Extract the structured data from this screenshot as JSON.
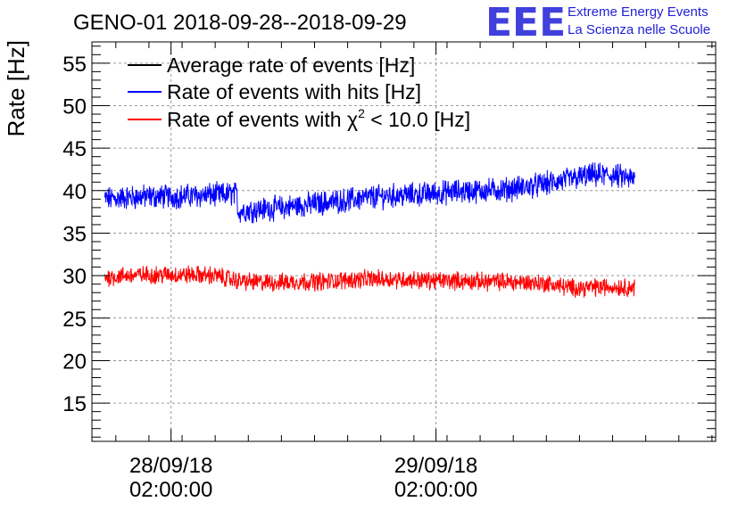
{
  "logo": {
    "letters": "EEE",
    "line1": "Extreme Energy Events",
    "line2": "La Scienza nelle Scuole",
    "color": "#1f1fd6"
  },
  "chart_data": {
    "type": "line",
    "title": "GENO-01 2018-09-28--2018-09-29",
    "ylabel": "Rate [Hz]",
    "xlabel": "",
    "ylim": [
      10.5,
      57.5
    ],
    "yticks": [
      "15",
      "20",
      "25",
      "30",
      "35",
      "40",
      "45",
      "50",
      "55"
    ],
    "xlim": [
      "2018-09-27 18:50:00",
      "2018-09-30 03:20:00"
    ],
    "xticks": [
      {
        "date": "28/09/18",
        "time": "02:00:00",
        "x": "2018-09-28 02:00:00"
      },
      {
        "date": "29/09/18",
        "time": "02:00:00",
        "x": "2018-09-29 02:00:00"
      }
    ],
    "grid": true,
    "legend_position": "top-left",
    "legend": [
      {
        "label": "Average rate of events [Hz]",
        "color": "#000000"
      },
      {
        "label": "Rate of events with hits [Hz]",
        "color": "#0000ff"
      },
      {
        "label_prefix": "Rate of events with ",
        "label_symbol": "χ",
        "label_sup": "2",
        "label_suffix": " < 10.0 [Hz]",
        "color": "#ff0000"
      }
    ],
    "series": [
      {
        "name": "Rate of events with hits [Hz]",
        "color": "#0000ff",
        "x": [
          "2018-09-27 20:00:00",
          "2018-09-27 22:00:00",
          "2018-09-28 00:00:00",
          "2018-09-28 02:00:00",
          "2018-09-28 04:00:00",
          "2018-09-28 06:00:00",
          "2018-09-28 07:00:00",
          "2018-09-28 08:00:00",
          "2018-09-28 10:00:00",
          "2018-09-28 12:00:00",
          "2018-09-28 14:00:00",
          "2018-09-28 16:00:00",
          "2018-09-28 18:00:00",
          "2018-09-28 20:00:00",
          "2018-09-28 22:00:00",
          "2018-09-29 00:00:00",
          "2018-09-29 02:00:00",
          "2018-09-29 04:00:00",
          "2018-09-29 06:00:00",
          "2018-09-29 08:00:00",
          "2018-09-29 10:00:00",
          "2018-09-29 12:00:00",
          "2018-09-29 14:00:00",
          "2018-09-29 16:00:00",
          "2018-09-29 18:00:00",
          "2018-09-29 20:00:00"
        ],
        "values": [
          39.0,
          39.2,
          39.3,
          39.3,
          39.4,
          39.5,
          39.6,
          37.6,
          37.8,
          38.0,
          38.3,
          38.6,
          38.9,
          39.2,
          39.4,
          39.5,
          39.7,
          39.9,
          40.0,
          40.1,
          40.4,
          40.8,
          41.3,
          41.8,
          41.8,
          41.3
        ],
        "spread": 1.2
      },
      {
        "name": "Rate of events with χ² < 10.0 [Hz]",
        "color": "#ff0000",
        "x": [
          "2018-09-27 20:00:00",
          "2018-09-27 22:00:00",
          "2018-09-28 00:00:00",
          "2018-09-28 02:00:00",
          "2018-09-28 04:00:00",
          "2018-09-28 06:00:00",
          "2018-09-28 08:00:00",
          "2018-09-28 10:00:00",
          "2018-09-28 12:00:00",
          "2018-09-28 14:00:00",
          "2018-09-28 16:00:00",
          "2018-09-28 18:00:00",
          "2018-09-28 20:00:00",
          "2018-09-28 22:00:00",
          "2018-09-29 00:00:00",
          "2018-09-29 02:00:00",
          "2018-09-29 04:00:00",
          "2018-09-29 06:00:00",
          "2018-09-29 08:00:00",
          "2018-09-29 10:00:00",
          "2018-09-29 12:00:00",
          "2018-09-29 14:00:00",
          "2018-09-29 16:00:00",
          "2018-09-29 18:00:00",
          "2018-09-29 20:00:00"
        ],
        "values": [
          29.8,
          30.0,
          30.1,
          30.1,
          30.1,
          30.0,
          29.4,
          29.2,
          29.2,
          29.3,
          29.3,
          29.5,
          29.6,
          29.6,
          29.5,
          29.4,
          29.4,
          29.3,
          29.3,
          29.2,
          29.1,
          28.6,
          28.6,
          28.7,
          28.6
        ],
        "spread": 0.9
      }
    ]
  }
}
